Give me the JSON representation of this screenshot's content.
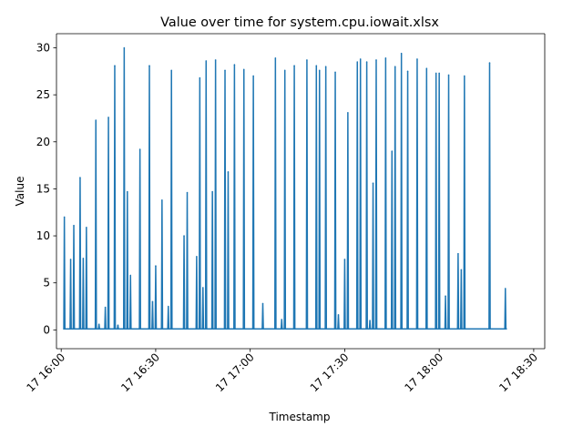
{
  "chart_data": {
    "type": "line",
    "title": "Value over time for system.cpu.iowait.xlsx",
    "xlabel": "Timestamp",
    "ylabel": "Value",
    "xlim": [
      "17 16:00",
      "17 18:30"
    ],
    "ylim": [
      -2,
      31.5
    ],
    "x_ticks": [
      "17 16:00",
      "17 16:30",
      "17 17:00",
      "17 17:30",
      "17 18:00",
      "17 18:30"
    ],
    "y_ticks": [
      0,
      5,
      10,
      15,
      20,
      25,
      30
    ],
    "grid": false,
    "line_color": "#1f77b4",
    "series": [
      {
        "x": [
          "17 16:01",
          "17 16:03",
          "17 16:04",
          "17 16:06",
          "17 16:07",
          "17 16:08",
          "17 16:11",
          "17 16:12",
          "17 16:14",
          "17 16:15",
          "17 16:17",
          "17 16:18",
          "17 16:20",
          "17 16:21",
          "17 16:22",
          "17 16:25",
          "17 16:28",
          "17 16:29",
          "17 16:30",
          "17 16:32",
          "17 16:34",
          "17 16:35",
          "17 16:39",
          "17 16:40",
          "17 16:43",
          "17 16:44",
          "17 16:45",
          "17 16:46",
          "17 16:48",
          "17 16:49",
          "17 16:52",
          "17 16:53",
          "17 16:55",
          "17 16:58",
          "17 17:01",
          "17 17:04",
          "17 17:08",
          "17 17:10",
          "17 17:11",
          "17 17:14",
          "17 17:18",
          "17 17:21",
          "17 17:22",
          "17 17:24",
          "17 17:27",
          "17 17:28",
          "17 17:30",
          "17 17:31",
          "17 17:34",
          "17 17:35",
          "17 17:37",
          "17 17:38",
          "17 17:39",
          "17 17:40",
          "17 17:43",
          "17 17:45",
          "17 17:46",
          "17 17:48",
          "17 17:50",
          "17 17:53",
          "17 17:56",
          "17 17:59",
          "17 18:00",
          "17 18:02",
          "17 18:03",
          "17 18:06",
          "17 18:07",
          "17 18:08",
          "17 18:16",
          "17 18:21"
        ],
        "values": [
          12.0,
          7.5,
          11.1,
          16.2,
          7.6,
          10.9,
          22.3,
          0.6,
          2.4,
          22.6,
          28.1,
          0.5,
          30.0,
          14.7,
          5.8,
          19.2,
          28.1,
          3.0,
          6.8,
          13.8,
          2.5,
          27.6,
          10.0,
          14.6,
          7.8,
          26.8,
          4.5,
          28.6,
          14.7,
          28.7,
          27.6,
          16.8,
          28.2,
          27.7,
          27.0,
          2.8,
          28.9,
          1.1,
          27.6,
          28.1,
          28.7,
          28.1,
          27.6,
          28.0,
          27.4,
          1.6,
          7.5,
          23.1,
          28.5,
          28.8,
          28.5,
          1.0,
          15.6,
          28.7,
          28.9,
          19.0,
          28.0,
          29.4,
          27.5,
          28.8,
          27.8,
          27.3,
          27.3,
          3.6,
          27.1,
          8.1,
          6.4,
          27.0,
          28.4,
          4.4
        ]
      }
    ]
  }
}
